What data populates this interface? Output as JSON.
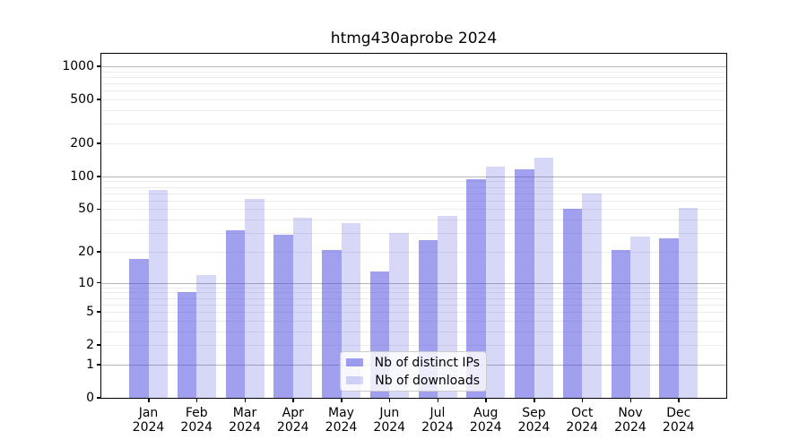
{
  "title": "htmg430aprobe 2024",
  "colors": {
    "bar_ips": "rgba(68,68,221,0.51)",
    "bar_downloads": "rgba(68,68,221,0.21)",
    "grid_major": "#b6b6b6",
    "grid_minor": "#ececec",
    "axis": "#000000",
    "legend_border": "#cccccc",
    "background": "#ffffff"
  },
  "legend": {
    "items": [
      {
        "label": "Nb of distinct IPs",
        "series": "ips"
      },
      {
        "label": "Nb of downloads",
        "series": "downloads"
      }
    ]
  },
  "chart_data": {
    "type": "bar",
    "title": "htmg430aprobe 2024",
    "categories": [
      "Jan",
      "Feb",
      "Mar",
      "Apr",
      "May",
      "Jun",
      "Jul",
      "Aug",
      "Sep",
      "Oct",
      "Nov",
      "Dec"
    ],
    "category_year": "2024",
    "series": [
      {
        "name": "Nb of distinct IPs",
        "color": "rgba(68,68,221,0.51)",
        "values": [
          17,
          8,
          32,
          29,
          21,
          13,
          26,
          94,
          117,
          50,
          21,
          27
        ]
      },
      {
        "name": "Nb of downloads",
        "color": "rgba(68,68,221,0.21)",
        "values": [
          75,
          12,
          62,
          42,
          37,
          30,
          43,
          122,
          149,
          70,
          28,
          51
        ]
      }
    ],
    "yscale": "log10(value+1)",
    "yticks": [
      0,
      1,
      2,
      5,
      10,
      20,
      50,
      100,
      200,
      500,
      1000
    ],
    "ytick_major": [
      1,
      10,
      100,
      1000
    ],
    "ytick_minor": [
      2,
      3,
      4,
      5,
      6,
      7,
      8,
      9,
      20,
      30,
      40,
      50,
      60,
      70,
      80,
      90,
      200,
      300,
      400,
      500,
      600,
      700,
      800,
      900
    ],
    "ylim": [
      0,
      1280
    ],
    "grid": true,
    "legend_position": "inside-lower-center"
  }
}
